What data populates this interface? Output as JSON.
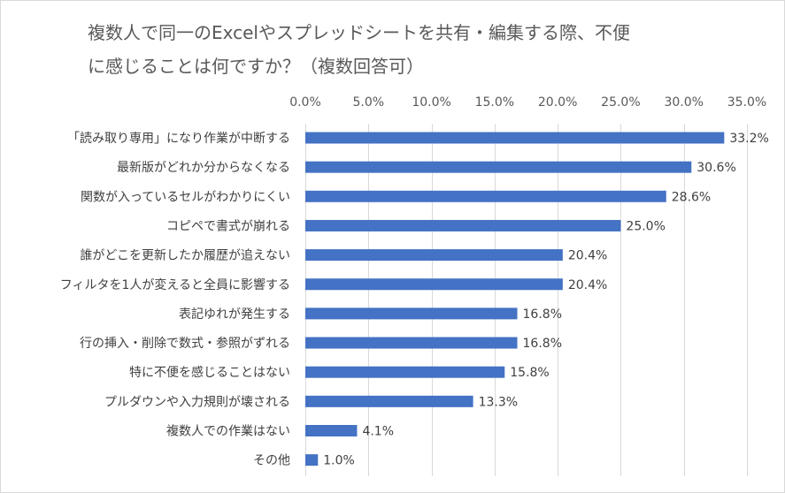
{
  "chart_data": {
    "type": "bar",
    "orientation": "horizontal",
    "title": [
      "複数人で同一のExcelやスプレッドシートを共有・編集する際、不便",
      "に感じることは何ですか？（複数回答可）"
    ],
    "categories": [
      "「読み取り専用」になり作業が中断する",
      "最新版がどれか分からなくなる",
      "関数が入っているセルがわかりにくい",
      "コピペで書式が崩れる",
      "誰がどこを更新したか履歴が追えない",
      "フィルタを1人が変えると全員に影響する",
      "表記ゆれが発生する",
      "行の挿入・削除で数式・参照がずれる",
      "特に不便を感じることはない",
      "プルダウンや入力規則が壊される",
      "複数人での作業はない",
      "その他"
    ],
    "values": [
      33.2,
      30.6,
      28.6,
      25.0,
      20.4,
      20.4,
      16.8,
      16.8,
      15.8,
      13.3,
      4.1,
      1.0
    ],
    "data_labels": [
      "33.2%",
      "30.6%",
      "28.6%",
      "25.0%",
      "20.4%",
      "20.4%",
      "16.8%",
      "16.8%",
      "15.8%",
      "13.3%",
      "4.1%",
      "1.0%"
    ],
    "xlim": [
      0,
      35
    ],
    "x_ticks": [
      0,
      5,
      10,
      15,
      20,
      25,
      30,
      35
    ],
    "x_tick_labels": [
      "0.0%",
      "5.0%",
      "10.0%",
      "15.0%",
      "20.0%",
      "25.0%",
      "30.0%",
      "35.0%"
    ],
    "x_axis_position": "top",
    "grid": true,
    "bar_color": "#4472c4",
    "grid_color": "#d9d9d9"
  }
}
